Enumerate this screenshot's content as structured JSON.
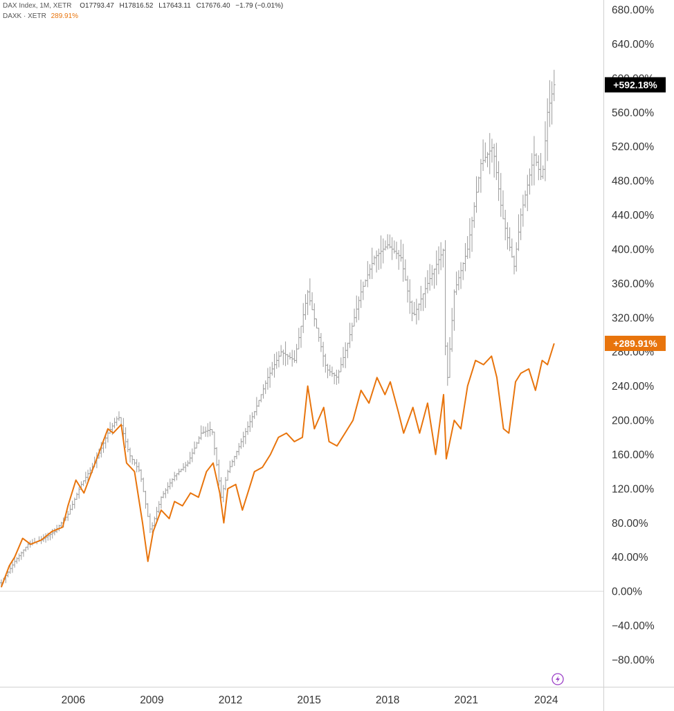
{
  "legend": {
    "dax_name": "DAX Index, 1M, XETR",
    "dax_open": "O17793.47",
    "dax_high": "H17816.52",
    "dax_low": "L17643.11",
    "dax_close": "C17676.40",
    "dax_change": "−1.79 (−0.01%)",
    "daxk_name": "DAXK · XETR",
    "daxk_value": "289.91%"
  },
  "colors": {
    "dax": "#9a9a9a",
    "daxk": "#e8740c",
    "dax_tag_bg": "#000000",
    "daxk_tag_bg": "#e8740c",
    "grid_zero": "#d9d9d9",
    "axis_line": "#d0d0d0",
    "lightning_icon": "#9b3fc7"
  },
  "icons": {
    "replay": "lightning-icon"
  },
  "chart_data": {
    "type": "line",
    "title": "",
    "xlabel": "",
    "ylabel": "",
    "ylim": [
      -100,
      690
    ],
    "xlim": [
      2003.45,
      2026.1
    ],
    "y_ticks": [
      "680.00%",
      "640.00%",
      "600.00%",
      "560.00%",
      "520.00%",
      "480.00%",
      "440.00%",
      "400.00%",
      "360.00%",
      "320.00%",
      "280.00%",
      "240.00%",
      "200.00%",
      "160.00%",
      "120.00%",
      "80.00%",
      "40.00%",
      "0.00%",
      "−40.00%",
      "−80.00%"
    ],
    "y_tick_values": [
      680,
      640,
      600,
      560,
      520,
      480,
      440,
      400,
      360,
      320,
      280,
      240,
      200,
      160,
      120,
      80,
      40,
      0,
      -40,
      -80
    ],
    "x_ticks": [
      "2006",
      "2009",
      "2012",
      "2015",
      "2018",
      "2021",
      "2024"
    ],
    "x_tick_values": [
      2006.2,
      2009.15,
      2012.1,
      2015.05,
      2018.0,
      2020.95,
      2023.95
    ],
    "last_value_tags": [
      "+592.18%",
      "+289.91%"
    ],
    "series": [
      {
        "name": "DAX Index",
        "style": "ohlc-bars",
        "x": [
          2003.5,
          2004.0,
          2004.5,
          2005.0,
          2005.5,
          2006.0,
          2006.5,
          2007.0,
          2007.5,
          2007.9,
          2008.3,
          2008.7,
          2009.1,
          2009.5,
          2010.0,
          2010.5,
          2011.0,
          2011.4,
          2011.75,
          2012.0,
          2012.5,
          2013.0,
          2013.5,
          2014.0,
          2014.5,
          2015.0,
          2015.2,
          2015.7,
          2016.1,
          2016.5,
          2017.0,
          2017.5,
          2018.0,
          2018.5,
          2018.95,
          2019.5,
          2020.1,
          2020.2,
          2020.5,
          2021.0,
          2021.5,
          2021.95,
          2022.3,
          2022.75,
          2023.0,
          2023.5,
          2023.8,
          2024.0,
          2024.25
        ],
        "values": [
          10,
          35,
          55,
          60,
          70,
          90,
          125,
          150,
          185,
          205,
          160,
          140,
          70,
          110,
          135,
          150,
          185,
          190,
          110,
          140,
          175,
          210,
          250,
          280,
          270,
          350,
          325,
          260,
          250,
          290,
          350,
          390,
          405,
          390,
          320,
          360,
          400,
          230,
          350,
          400,
          500,
          520,
          440,
          380,
          440,
          510,
          480,
          560,
          592.18
        ]
      },
      {
        "name": "DAXK",
        "style": "line",
        "x": [
          2003.5,
          2003.8,
          2004.0,
          2004.3,
          2004.6,
          2005.0,
          2005.4,
          2005.8,
          2006.0,
          2006.3,
          2006.6,
          2006.9,
          2007.2,
          2007.5,
          2007.7,
          2008.0,
          2008.2,
          2008.5,
          2008.8,
          2009.0,
          2009.2,
          2009.5,
          2009.8,
          2010.0,
          2010.3,
          2010.6,
          2010.9,
          2011.2,
          2011.45,
          2011.7,
          2011.85,
          2012.0,
          2012.3,
          2012.55,
          2012.8,
          2013.0,
          2013.3,
          2013.6,
          2013.9,
          2014.2,
          2014.5,
          2014.8,
          2015.0,
          2015.25,
          2015.6,
          2015.8,
          2016.1,
          2016.4,
          2016.7,
          2017.0,
          2017.3,
          2017.6,
          2017.9,
          2018.1,
          2018.4,
          2018.6,
          2018.95,
          2019.2,
          2019.5,
          2019.8,
          2020.1,
          2020.2,
          2020.5,
          2020.75,
          2021.0,
          2021.3,
          2021.6,
          2021.9,
          2022.1,
          2022.35,
          2022.55,
          2022.8,
          2023.0,
          2023.3,
          2023.55,
          2023.8,
          2024.0,
          2024.25
        ],
        "values": [
          5,
          30,
          40,
          62,
          55,
          60,
          70,
          75,
          100,
          130,
          115,
          140,
          165,
          190,
          185,
          195,
          150,
          140,
          80,
          35,
          70,
          95,
          85,
          105,
          100,
          115,
          110,
          140,
          150,
          115,
          80,
          120,
          125,
          95,
          120,
          140,
          145,
          160,
          180,
          185,
          175,
          180,
          240,
          190,
          215,
          175,
          170,
          185,
          200,
          235,
          220,
          250,
          230,
          245,
          210,
          185,
          215,
          185,
          220,
          160,
          230,
          155,
          200,
          190,
          240,
          270,
          265,
          275,
          250,
          190,
          185,
          245,
          255,
          260,
          235,
          270,
          265,
          289.91
        ]
      }
    ]
  }
}
